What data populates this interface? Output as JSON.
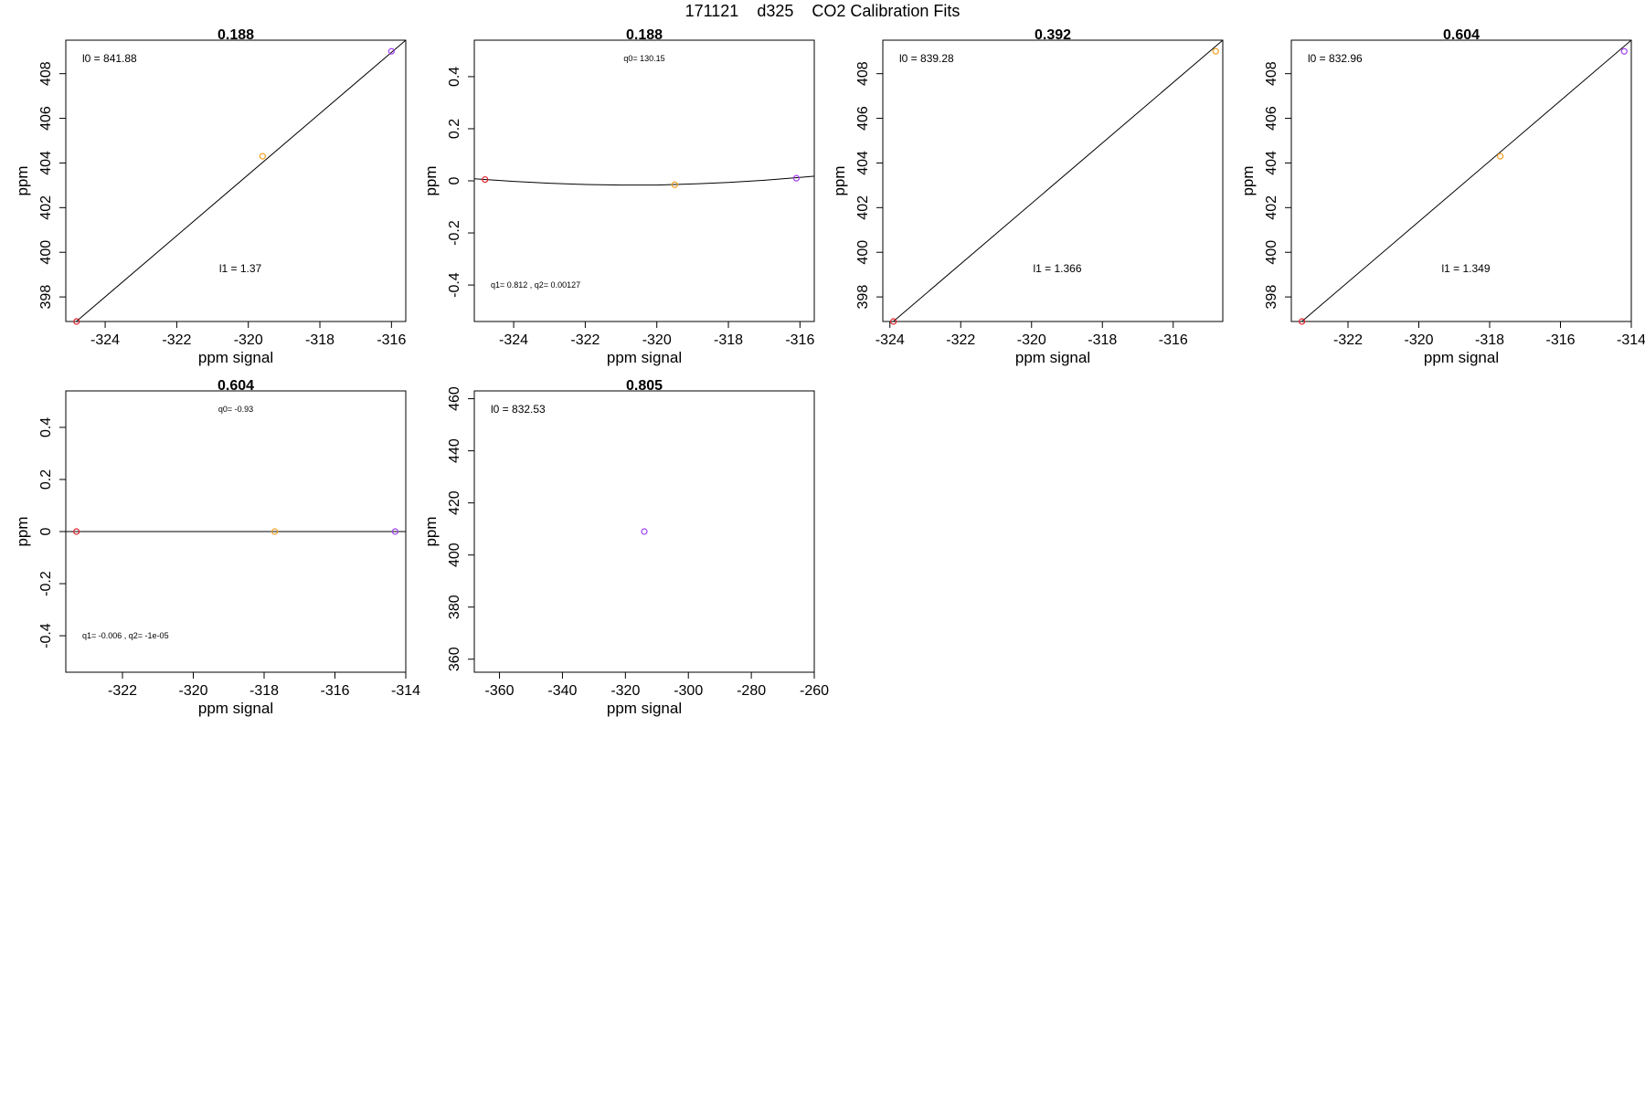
{
  "figure": {
    "date": "171121",
    "site": "d325",
    "title": "CO2 Calibration Fits",
    "point_colors": [
      "#e0202a",
      "#f0a020",
      "#a040f0"
    ],
    "line_color": "#000000"
  },
  "chart_data": [
    {
      "type": "scatter",
      "title": "0.188",
      "xlabel": "ppm signal",
      "ylabel": "ppm",
      "xlim": [
        -325.1,
        -315.6
      ],
      "ylim": [
        396.9,
        409.5
      ],
      "xticks": [
        -324,
        -322,
        -320,
        -318,
        -316
      ],
      "yticks": [
        398,
        400,
        402,
        404,
        406,
        408
      ],
      "points": [
        {
          "x": -324.8,
          "y": 396.9
        },
        {
          "x": -319.6,
          "y": 404.3
        },
        {
          "x": -316.0,
          "y": 409.0
        }
      ],
      "fit": {
        "kind": "line",
        "x": [
          -325.1,
          -315.6
        ],
        "y": [
          396.5,
          409.5
        ]
      },
      "annotations": [
        {
          "label": "l0 =",
          "value": "841.88",
          "pos": "top-left"
        },
        {
          "label": "l1 =",
          "value": "1.37",
          "pos": "lower-center"
        }
      ]
    },
    {
      "type": "scatter",
      "title": "0.188",
      "xlabel": "ppm signal",
      "ylabel": "ppm",
      "xlim": [
        -325.1,
        -315.6
      ],
      "ylim": [
        -0.54,
        0.54
      ],
      "xticks": [
        -324,
        -322,
        -320,
        -318,
        -316
      ],
      "yticks": [
        -0.4,
        -0.2,
        0.0,
        0.2,
        0.4
      ],
      "points": [
        {
          "x": -324.8,
          "y": 0.005
        },
        {
          "x": -319.5,
          "y": -0.015
        },
        {
          "x": -316.1,
          "y": 0.01
        }
      ],
      "fit": {
        "kind": "curve",
        "x": [
          -325.1,
          -324,
          -323,
          -322,
          -321,
          -320,
          -319,
          -318,
          -317,
          -316,
          -315.6
        ],
        "y": [
          0.008,
          -0.002,
          -0.009,
          -0.014,
          -0.016,
          -0.016,
          -0.012,
          -0.006,
          0.002,
          0.013,
          0.018
        ]
      },
      "annotations": [
        {
          "label": "q0=",
          "value": "130.15",
          "pos": "top-center"
        },
        {
          "label": "q1=",
          "value": "0.812",
          "label2": ", q2=",
          "value2": "0.00127",
          "pos": "bottom-left"
        }
      ]
    },
    {
      "type": "scatter",
      "title": "0.392",
      "xlabel": "ppm signal",
      "ylabel": "ppm",
      "xlim": [
        -324.2,
        -314.6
      ],
      "ylim": [
        396.9,
        409.5
      ],
      "xticks": [
        -324,
        -322,
        -320,
        -318,
        -316
      ],
      "yticks": [
        398,
        400,
        402,
        404,
        406,
        408
      ],
      "points": [
        {
          "x": -323.9,
          "y": 396.9
        },
        {
          "x": -314.8,
          "y": 409.0
        }
      ],
      "fit": {
        "kind": "line",
        "x": [
          -324.2,
          -314.6
        ],
        "y": [
          396.5,
          409.5
        ]
      },
      "annotations": [
        {
          "label": "l0 =",
          "value": "839.28",
          "pos": "top-left"
        },
        {
          "label": "l1 =",
          "value": "1.366",
          "pos": "lower-center"
        }
      ]
    },
    {
      "type": "scatter",
      "title": "0.604",
      "xlabel": "ppm signal",
      "ylabel": "ppm",
      "xlim": [
        -323.6,
        -314.0
      ],
      "ylim": [
        396.9,
        409.5
      ],
      "xticks": [
        -322,
        -320,
        -318,
        -316,
        -314
      ],
      "yticks": [
        398,
        400,
        402,
        404,
        406,
        408
      ],
      "points": [
        {
          "x": -323.3,
          "y": 396.9
        },
        {
          "x": -317.7,
          "y": 404.3
        },
        {
          "x": -314.2,
          "y": 409.0
        }
      ],
      "fit": {
        "kind": "line",
        "x": [
          -323.6,
          -314.0
        ],
        "y": [
          396.5,
          409.5
        ]
      },
      "annotations": [
        {
          "label": "l0 =",
          "value": "832.96",
          "pos": "top-left"
        },
        {
          "label": "l1 =",
          "value": "1.349",
          "pos": "lower-center"
        }
      ]
    },
    {
      "type": "scatter",
      "title": "0.604",
      "xlabel": "ppm signal",
      "ylabel": "ppm",
      "xlim": [
        -323.6,
        -314.0
      ],
      "ylim": [
        -0.54,
        0.54
      ],
      "xticks": [
        -322,
        -320,
        -318,
        -316,
        -314
      ],
      "yticks": [
        -0.4,
        -0.2,
        0.0,
        0.2,
        0.4
      ],
      "points": [
        {
          "x": -323.3,
          "y": 0.0
        },
        {
          "x": -317.7,
          "y": 0.0
        },
        {
          "x": -314.3,
          "y": 0.0
        }
      ],
      "fit": {
        "kind": "line",
        "x": [
          -323.6,
          -314.0
        ],
        "y": [
          0.0,
          0.0
        ]
      },
      "annotations": [
        {
          "label": "q0=",
          "value": "-0.93",
          "pos": "top-center"
        },
        {
          "label": "q1=",
          "value": "-0.006",
          "label2": ", q2=",
          "value2": "-1e-05",
          "pos": "bottom-left"
        }
      ]
    },
    {
      "type": "scatter",
      "title": "0.805",
      "xlabel": "ppm signal",
      "ylabel": "ppm",
      "xlim": [
        -368,
        -260
      ],
      "ylim": [
        355,
        463
      ],
      "xticks": [
        -360,
        -340,
        -320,
        -300,
        -280,
        -260
      ],
      "yticks": [
        360,
        380,
        400,
        420,
        440,
        460
      ],
      "points": [
        {
          "x": -314,
          "y": 409
        }
      ],
      "point_color_index": 2,
      "annotations": [
        {
          "label": "l0 =",
          "value": "832.53",
          "pos": "top-left"
        }
      ]
    }
  ]
}
